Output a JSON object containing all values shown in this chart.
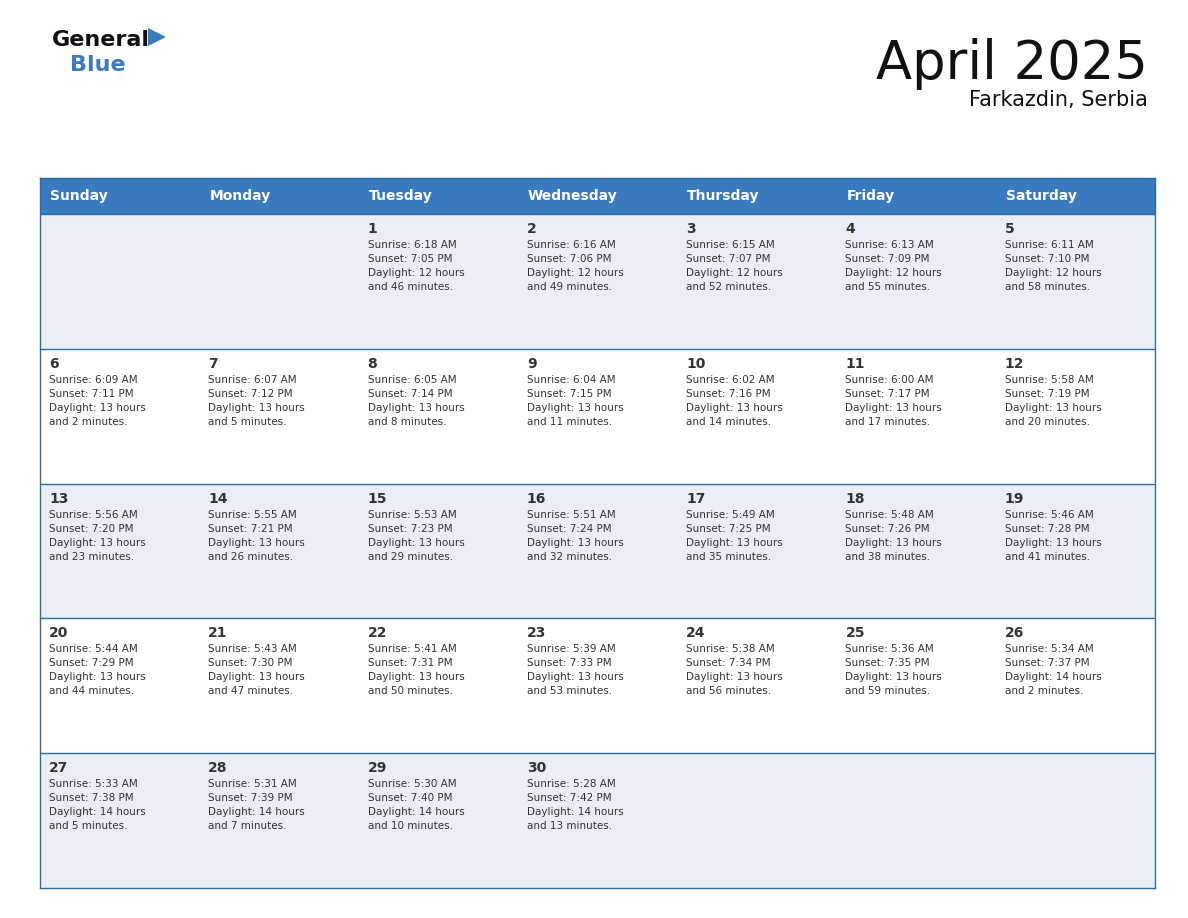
{
  "title": "April 2025",
  "subtitle": "Farkazdin, Serbia",
  "header_bg_color": "#3a7abf",
  "header_text_color": "#ffffff",
  "cell_bg_light": "#e8eef4",
  "cell_bg_white": "#ffffff",
  "row_line_color": "#2e6da4",
  "text_color": "#333333",
  "days_of_week": [
    "Sunday",
    "Monday",
    "Tuesday",
    "Wednesday",
    "Thursday",
    "Friday",
    "Saturday"
  ],
  "weeks": [
    [
      {
        "day": "",
        "info": ""
      },
      {
        "day": "",
        "info": ""
      },
      {
        "day": "1",
        "info": "Sunrise: 6:18 AM\nSunset: 7:05 PM\nDaylight: 12 hours\nand 46 minutes."
      },
      {
        "day": "2",
        "info": "Sunrise: 6:16 AM\nSunset: 7:06 PM\nDaylight: 12 hours\nand 49 minutes."
      },
      {
        "day": "3",
        "info": "Sunrise: 6:15 AM\nSunset: 7:07 PM\nDaylight: 12 hours\nand 52 minutes."
      },
      {
        "day": "4",
        "info": "Sunrise: 6:13 AM\nSunset: 7:09 PM\nDaylight: 12 hours\nand 55 minutes."
      },
      {
        "day": "5",
        "info": "Sunrise: 6:11 AM\nSunset: 7:10 PM\nDaylight: 12 hours\nand 58 minutes."
      }
    ],
    [
      {
        "day": "6",
        "info": "Sunrise: 6:09 AM\nSunset: 7:11 PM\nDaylight: 13 hours\nand 2 minutes."
      },
      {
        "day": "7",
        "info": "Sunrise: 6:07 AM\nSunset: 7:12 PM\nDaylight: 13 hours\nand 5 minutes."
      },
      {
        "day": "8",
        "info": "Sunrise: 6:05 AM\nSunset: 7:14 PM\nDaylight: 13 hours\nand 8 minutes."
      },
      {
        "day": "9",
        "info": "Sunrise: 6:04 AM\nSunset: 7:15 PM\nDaylight: 13 hours\nand 11 minutes."
      },
      {
        "day": "10",
        "info": "Sunrise: 6:02 AM\nSunset: 7:16 PM\nDaylight: 13 hours\nand 14 minutes."
      },
      {
        "day": "11",
        "info": "Sunrise: 6:00 AM\nSunset: 7:17 PM\nDaylight: 13 hours\nand 17 minutes."
      },
      {
        "day": "12",
        "info": "Sunrise: 5:58 AM\nSunset: 7:19 PM\nDaylight: 13 hours\nand 20 minutes."
      }
    ],
    [
      {
        "day": "13",
        "info": "Sunrise: 5:56 AM\nSunset: 7:20 PM\nDaylight: 13 hours\nand 23 minutes."
      },
      {
        "day": "14",
        "info": "Sunrise: 5:55 AM\nSunset: 7:21 PM\nDaylight: 13 hours\nand 26 minutes."
      },
      {
        "day": "15",
        "info": "Sunrise: 5:53 AM\nSunset: 7:23 PM\nDaylight: 13 hours\nand 29 minutes."
      },
      {
        "day": "16",
        "info": "Sunrise: 5:51 AM\nSunset: 7:24 PM\nDaylight: 13 hours\nand 32 minutes."
      },
      {
        "day": "17",
        "info": "Sunrise: 5:49 AM\nSunset: 7:25 PM\nDaylight: 13 hours\nand 35 minutes."
      },
      {
        "day": "18",
        "info": "Sunrise: 5:48 AM\nSunset: 7:26 PM\nDaylight: 13 hours\nand 38 minutes."
      },
      {
        "day": "19",
        "info": "Sunrise: 5:46 AM\nSunset: 7:28 PM\nDaylight: 13 hours\nand 41 minutes."
      }
    ],
    [
      {
        "day": "20",
        "info": "Sunrise: 5:44 AM\nSunset: 7:29 PM\nDaylight: 13 hours\nand 44 minutes."
      },
      {
        "day": "21",
        "info": "Sunrise: 5:43 AM\nSunset: 7:30 PM\nDaylight: 13 hours\nand 47 minutes."
      },
      {
        "day": "22",
        "info": "Sunrise: 5:41 AM\nSunset: 7:31 PM\nDaylight: 13 hours\nand 50 minutes."
      },
      {
        "day": "23",
        "info": "Sunrise: 5:39 AM\nSunset: 7:33 PM\nDaylight: 13 hours\nand 53 minutes."
      },
      {
        "day": "24",
        "info": "Sunrise: 5:38 AM\nSunset: 7:34 PM\nDaylight: 13 hours\nand 56 minutes."
      },
      {
        "day": "25",
        "info": "Sunrise: 5:36 AM\nSunset: 7:35 PM\nDaylight: 13 hours\nand 59 minutes."
      },
      {
        "day": "26",
        "info": "Sunrise: 5:34 AM\nSunset: 7:37 PM\nDaylight: 14 hours\nand 2 minutes."
      }
    ],
    [
      {
        "day": "27",
        "info": "Sunrise: 5:33 AM\nSunset: 7:38 PM\nDaylight: 14 hours\nand 5 minutes."
      },
      {
        "day": "28",
        "info": "Sunrise: 5:31 AM\nSunset: 7:39 PM\nDaylight: 14 hours\nand 7 minutes."
      },
      {
        "day": "29",
        "info": "Sunrise: 5:30 AM\nSunset: 7:40 PM\nDaylight: 14 hours\nand 10 minutes."
      },
      {
        "day": "30",
        "info": "Sunrise: 5:28 AM\nSunset: 7:42 PM\nDaylight: 14 hours\nand 13 minutes."
      },
      {
        "day": "",
        "info": ""
      },
      {
        "day": "",
        "info": ""
      },
      {
        "day": "",
        "info": ""
      }
    ]
  ]
}
